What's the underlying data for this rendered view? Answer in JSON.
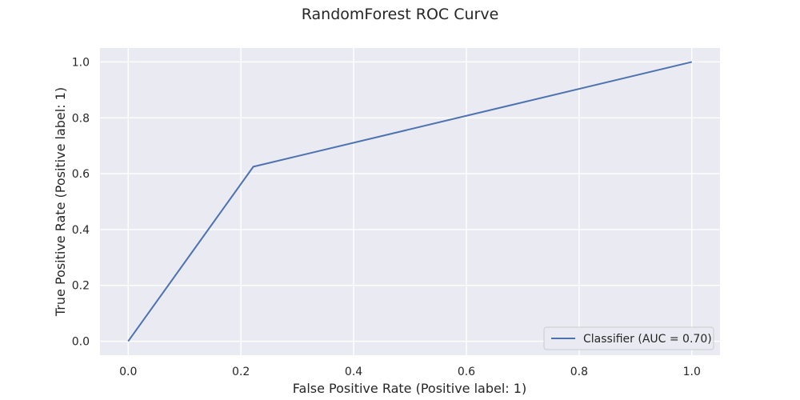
{
  "chart_data": {
    "type": "line",
    "title": "RandomForest ROC Curve",
    "xlabel": "False Positive Rate (Positive label: 1)",
    "ylabel": "True Positive Rate (Positive label: 1)",
    "xlim": [
      -0.05,
      1.05
    ],
    "ylim": [
      -0.05,
      1.05
    ],
    "xticks": [
      0.0,
      0.2,
      0.4,
      0.6,
      0.8,
      1.0
    ],
    "yticks": [
      0.0,
      0.2,
      0.4,
      0.6,
      0.8,
      1.0
    ],
    "xtick_labels": [
      "0.0",
      "0.2",
      "0.4",
      "0.6",
      "0.8",
      "1.0"
    ],
    "ytick_labels": [
      "0.0",
      "0.2",
      "0.4",
      "0.6",
      "0.8",
      "1.0"
    ],
    "grid": true,
    "legend_position": "bottom-right",
    "series": [
      {
        "name": "Classifier (AUC = 0.70)",
        "color": "#4c72b0",
        "x": [
          0.0,
          0.222,
          1.0
        ],
        "y": [
          0.0,
          0.625,
          1.0
        ]
      }
    ],
    "background_color": "#eaeaf2",
    "grid_color": "#ffffff"
  }
}
